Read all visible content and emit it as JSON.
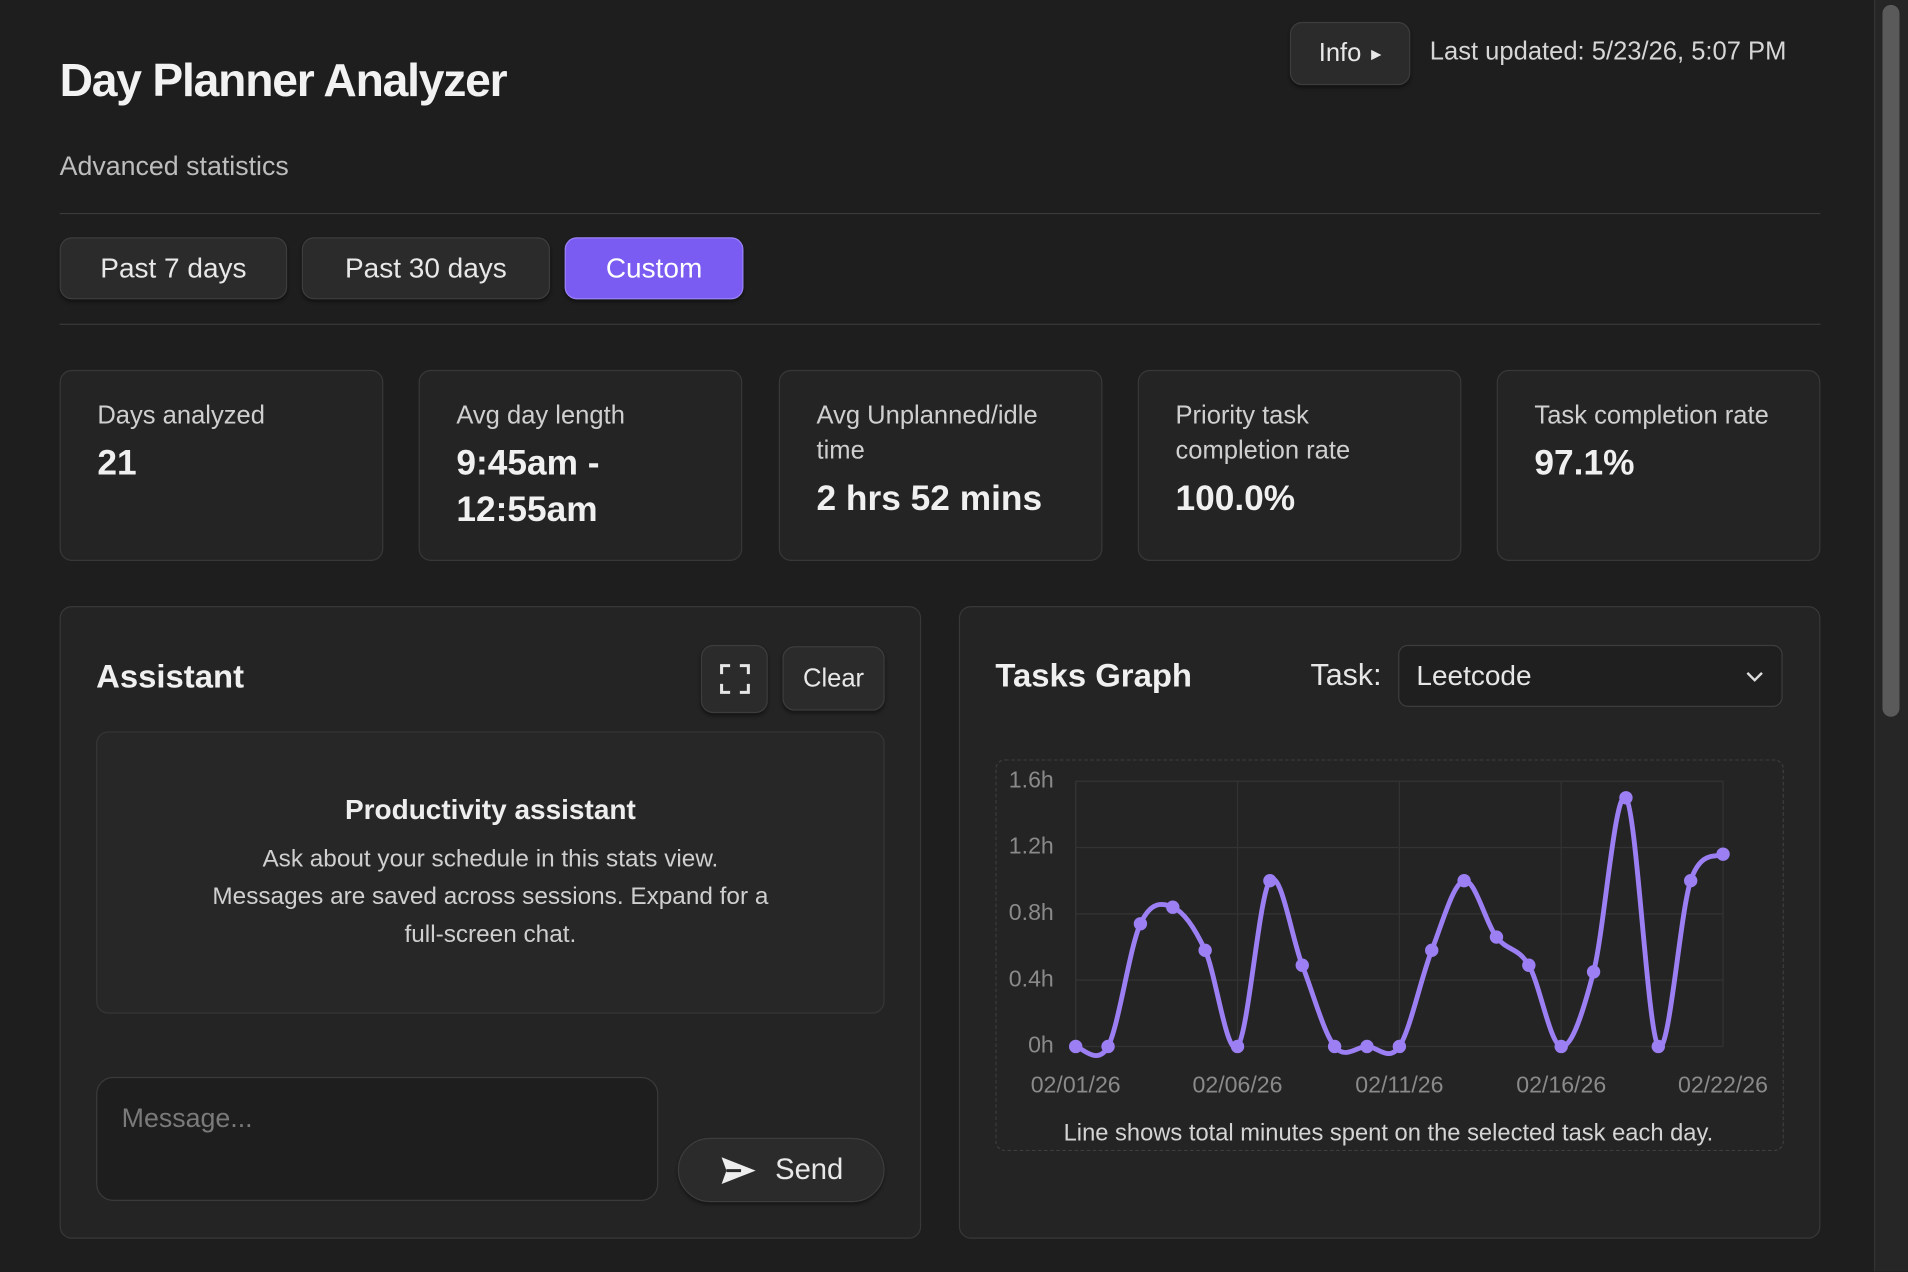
{
  "header": {
    "title": "Day Planner Analyzer",
    "subtitle": "Advanced statistics",
    "info_button": "Info",
    "last_updated": "Last updated: 5/23/26, 5:07 PM"
  },
  "tabs": [
    "Past 7 days",
    "Past 30 days",
    "Custom"
  ],
  "stats": [
    {
      "label": "Days analyzed",
      "value": "21"
    },
    {
      "label": "Avg day length",
      "value": "9:45am - 12:55am"
    },
    {
      "label": "Avg Unplanned/idle time",
      "value": "2 hrs 52 mins"
    },
    {
      "label": "Priority task completion rate",
      "value": "100.0%"
    },
    {
      "label": "Task completion rate",
      "value": "97.1%"
    }
  ],
  "assistant": {
    "title": "Assistant",
    "clear": "Clear",
    "empty_title": "Productivity assistant",
    "empty_text": "Ask about your schedule in this stats view. Messages are saved across sessions. Expand for a full-screen chat.",
    "placeholder": "Message...",
    "send": "Send"
  },
  "tasks_graph": {
    "title": "Tasks Graph",
    "task_label": "Task:",
    "task_value": "Leetcode"
  },
  "chart_data": {
    "type": "line",
    "categories": [
      "02/01/26",
      null,
      null,
      null,
      null,
      "02/06/26",
      null,
      null,
      null,
      null,
      "02/11/26",
      null,
      null,
      null,
      null,
      "02/16/26",
      null,
      null,
      null,
      null,
      "02/22/26"
    ],
    "values": [
      0,
      0,
      0.74,
      0.84,
      0.58,
      0,
      1.0,
      0.49,
      0,
      0,
      0,
      0.58,
      1.0,
      0.66,
      0.49,
      0,
      0.45,
      1.5,
      0,
      1.0,
      1.16
    ],
    "color": "#9b7ff3",
    "ylim": [
      0,
      1.6
    ],
    "yticks": [
      {
        "value": 0,
        "label": "0h"
      },
      {
        "value": 0.4,
        "label": "0.4h"
      },
      {
        "value": 0.8,
        "label": "0.8h"
      },
      {
        "value": 1.2,
        "label": "1.2h"
      },
      {
        "value": 1.6,
        "label": "1.6h"
      }
    ],
    "grid": true,
    "caption": "Line shows total minutes spent on the selected task each day."
  }
}
